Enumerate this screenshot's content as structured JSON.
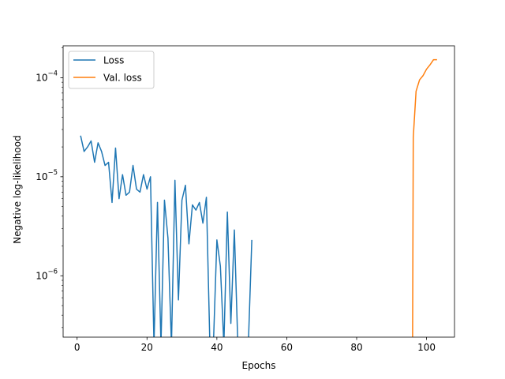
{
  "chart_data": {
    "type": "line",
    "title": "",
    "xlabel": "Epochs",
    "ylabel": "Negative log-likelihood",
    "yscale": "log",
    "xlim": [
      -4,
      108
    ],
    "ylim": [
      2.4e-07,
      0.00021
    ],
    "grid": false,
    "legend_position": "upper left",
    "x_ticks": [
      0,
      20,
      40,
      60,
      80,
      100
    ],
    "x_tick_labels": [
      "0",
      "20",
      "40",
      "60",
      "80",
      "100"
    ],
    "y_ticks": [
      1e-06,
      1e-05,
      0.0001
    ],
    "y_tick_labels": [
      {
        "base": "10",
        "exp": "−6"
      },
      {
        "base": "10",
        "exp": "−5"
      },
      {
        "base": "10",
        "exp": "−4"
      }
    ],
    "series": [
      {
        "name": "Loss",
        "color": "#1f77b4",
        "x": [
          1,
          2,
          3,
          4,
          5,
          6,
          7,
          8,
          9,
          10,
          11,
          12,
          13,
          14,
          15,
          16,
          17,
          18,
          19,
          20,
          21,
          22,
          23,
          24,
          25,
          26,
          27,
          28,
          29,
          30,
          31,
          32,
          33,
          34,
          35,
          36,
          37,
          38,
          39,
          40,
          41,
          42,
          43,
          44,
          45,
          46,
          47,
          48,
          49,
          50
        ],
        "y": [
          2.6e-05,
          1.8e-05,
          2e-05,
          2.3e-05,
          1.4e-05,
          2.2e-05,
          1.8e-05,
          1.3e-05,
          1.4e-05,
          5.5e-06,
          1.95e-05,
          6e-06,
          1.05e-05,
          6.5e-06,
          7e-06,
          1.3e-05,
          7.5e-06,
          7e-06,
          1.05e-05,
          7.5e-06,
          1e-05,
          null,
          5.5e-06,
          null,
          5.8e-06,
          2.4e-06,
          null,
          9.2e-06,
          5.7e-07,
          5.8e-06,
          8.2e-06,
          2.1e-06,
          5.2e-06,
          4.6e-06,
          5.5e-06,
          3.4e-06,
          6.2e-06,
          null,
          null,
          2.3e-06,
          1.25e-06,
          null,
          4.4e-06,
          3.3e-07,
          2.9e-06,
          null,
          null,
          null,
          null,
          2.3e-06
        ]
      },
      {
        "name": "Val. loss",
        "color": "#ff7f0e",
        "x": [
          96,
          96.2,
          97,
          98,
          99,
          100,
          101,
          102,
          103
        ],
        "y": [
          null,
          2.5e-05,
          7.3e-05,
          9.5e-05,
          0.000105,
          0.000122,
          0.000135,
          0.000152,
          0.000152
        ]
      }
    ]
  }
}
